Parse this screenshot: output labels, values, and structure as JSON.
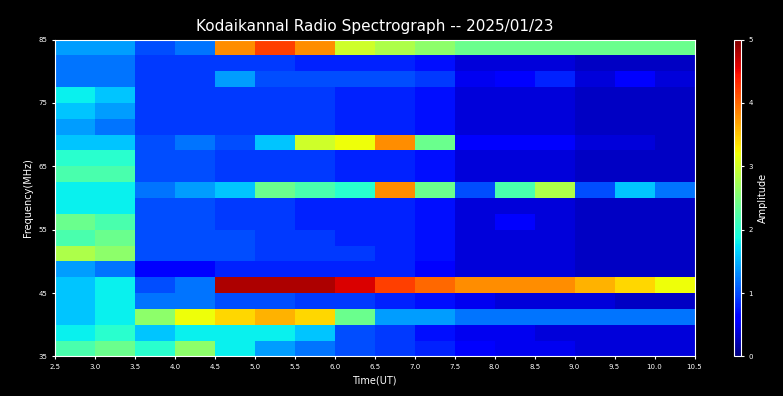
{
  "chart_data": {
    "type": "heatmap",
    "title": "Kodaikannal Radio Spectrograph -- 2025/01/23",
    "x_label": "Time(UT)",
    "y_label": "Frequency(MHz)",
    "xlim": [
      2.5,
      10.5
    ],
    "ylim": [
      35,
      85
    ],
    "xticks": [
      2.5,
      3.0,
      3.5,
      4.0,
      4.5,
      5.0,
      5.5,
      6.0,
      6.5,
      7.0,
      7.5,
      8.0,
      8.5,
      9.0,
      9.5,
      10.0,
      10.5
    ],
    "yticks": [
      35,
      45,
      55,
      65,
      75,
      85
    ],
    "x_edges": [
      2.5,
      3.0,
      3.5,
      4.0,
      4.5,
      5.0,
      5.5,
      6.0,
      6.5,
      7.0,
      7.5,
      8.0,
      8.5,
      9.0,
      9.5,
      10.0,
      10.5
    ],
    "y_edges": [
      35,
      37.5,
      40,
      42.5,
      45,
      47.5,
      50,
      52.5,
      55,
      57.5,
      60,
      62.5,
      65,
      67.5,
      70,
      72.5,
      75,
      77.5,
      80,
      82.5,
      85
    ],
    "cells": [
      [
        2.2,
        2.4,
        2.0,
        2.6,
        1.8,
        1.4,
        1.2,
        1.0,
        0.9,
        0.8,
        0.6,
        0.5,
        0.5,
        0.4,
        0.4,
        0.4
      ],
      [
        1.8,
        2.0,
        1.6,
        1.8,
        1.8,
        1.8,
        1.6,
        1.0,
        0.9,
        0.7,
        0.5,
        0.5,
        0.4,
        0.4,
        0.4,
        0.4
      ],
      [
        1.6,
        1.8,
        2.6,
        3.2,
        3.4,
        3.6,
        3.4,
        2.4,
        1.4,
        1.4,
        1.2,
        1.2,
        1.2,
        1.2,
        1.2,
        1.2
      ],
      [
        1.6,
        1.8,
        1.2,
        1.2,
        1.0,
        1.0,
        0.9,
        0.9,
        0.8,
        0.7,
        0.5,
        0.4,
        0.4,
        0.4,
        0.3,
        0.3
      ],
      [
        1.6,
        1.8,
        1.0,
        1.2,
        4.8,
        4.8,
        4.8,
        4.6,
        4.2,
        4.0,
        3.8,
        3.8,
        3.8,
        3.6,
        3.4,
        3.2
      ],
      [
        1.4,
        1.2,
        0.6,
        0.6,
        0.8,
        0.8,
        0.8,
        0.8,
        0.8,
        0.6,
        0.4,
        0.4,
        0.4,
        0.3,
        0.3,
        0.3
      ],
      [
        2.8,
        2.6,
        1.0,
        1.0,
        1.0,
        0.9,
        0.9,
        0.9,
        0.8,
        0.7,
        0.4,
        0.4,
        0.4,
        0.3,
        0.3,
        0.3
      ],
      [
        2.2,
        2.4,
        1.0,
        1.0,
        1.0,
        0.9,
        0.9,
        0.8,
        0.8,
        0.7,
        0.4,
        0.4,
        0.4,
        0.3,
        0.3,
        0.3
      ],
      [
        2.4,
        2.2,
        1.0,
        1.0,
        0.9,
        0.9,
        0.8,
        0.8,
        0.8,
        0.7,
        0.4,
        0.6,
        0.4,
        0.3,
        0.3,
        0.3
      ],
      [
        1.8,
        1.8,
        1.0,
        1.0,
        0.9,
        0.9,
        0.8,
        0.8,
        0.8,
        0.7,
        0.4,
        0.4,
        0.4,
        0.3,
        0.3,
        0.3
      ],
      [
        1.8,
        1.8,
        1.2,
        1.4,
        1.6,
        2.4,
        2.2,
        2.0,
        3.8,
        2.4,
        1.0,
        2.2,
        2.8,
        1.0,
        1.6,
        1.2
      ],
      [
        2.2,
        2.2,
        1.0,
        1.0,
        0.9,
        0.9,
        0.9,
        0.8,
        0.8,
        0.7,
        0.4,
        0.4,
        0.4,
        0.3,
        0.3,
        0.3
      ],
      [
        2.0,
        2.0,
        1.0,
        1.0,
        0.9,
        0.9,
        0.9,
        0.8,
        0.8,
        0.7,
        0.4,
        0.4,
        0.4,
        0.3,
        0.3,
        0.3
      ],
      [
        1.6,
        1.6,
        1.0,
        1.2,
        1.0,
        1.6,
        3.0,
        3.2,
        3.8,
        2.4,
        0.6,
        0.6,
        0.6,
        0.4,
        0.4,
        0.3
      ],
      [
        1.4,
        1.2,
        0.9,
        0.9,
        0.9,
        0.9,
        0.9,
        0.8,
        0.8,
        0.7,
        0.4,
        0.4,
        0.4,
        0.3,
        0.3,
        0.3
      ],
      [
        1.6,
        1.4,
        0.9,
        0.9,
        0.9,
        0.9,
        0.9,
        0.8,
        0.8,
        0.7,
        0.4,
        0.4,
        0.4,
        0.3,
        0.3,
        0.3
      ],
      [
        1.8,
        1.6,
        0.9,
        0.9,
        0.9,
        0.9,
        0.9,
        0.8,
        0.8,
        0.7,
        0.4,
        0.4,
        0.4,
        0.3,
        0.3,
        0.3
      ],
      [
        1.2,
        1.2,
        0.9,
        0.9,
        1.4,
        1.0,
        1.0,
        1.0,
        1.0,
        0.9,
        0.5,
        0.6,
        0.8,
        0.4,
        0.6,
        0.4
      ],
      [
        1.2,
        1.2,
        0.9,
        0.9,
        0.9,
        0.9,
        0.8,
        0.8,
        0.8,
        0.7,
        0.4,
        0.4,
        0.4,
        0.3,
        0.3,
        0.3
      ],
      [
        1.4,
        1.4,
        1.0,
        1.2,
        3.8,
        4.2,
        3.8,
        3.0,
        2.8,
        2.6,
        2.4,
        2.4,
        2.4,
        2.4,
        2.4,
        2.4
      ]
    ],
    "colorbar_label": "Amplitude",
    "colorbar_range": [
      0,
      5
    ],
    "colorbar_ticks": [
      0,
      1,
      2,
      3,
      4,
      5
    ]
  }
}
